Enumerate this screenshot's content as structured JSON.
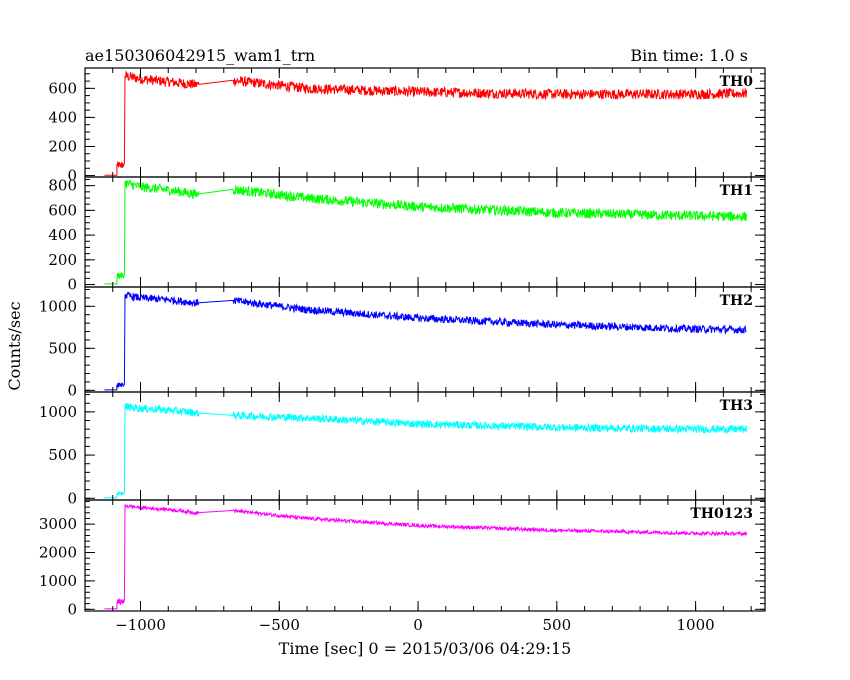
{
  "header": {
    "title": "ae150306042915_wam1_trn",
    "bin_time": "Bin time: 1.0 s"
  },
  "chart_data": {
    "type": "line",
    "xlabel": "Time [sec] 0 = 2015/03/06 04:29:15",
    "ylabel": "Counts/sec",
    "xlim": [
      -1200,
      1250
    ],
    "x_ticks": [
      -1000,
      -500,
      0,
      500,
      1000
    ],
    "x_tick_labels": [
      "−1000",
      "−500",
      "0",
      "500",
      "1000"
    ],
    "grid": false,
    "panels": [
      {
        "name": "TH0",
        "color": "#ff0000",
        "ylim": [
          -10,
          740
        ],
        "y_ticks": [
          0,
          200,
          400,
          600
        ],
        "baseline": 2,
        "pre": 80,
        "series": [
          [
            -1055,
            685
          ],
          [
            -1000,
            665
          ],
          [
            -900,
            645
          ],
          [
            -800,
            625
          ],
          [
            -670,
            655
          ],
          [
            -400,
            600
          ],
          [
            0,
            575
          ],
          [
            500,
            560
          ],
          [
            1000,
            560
          ],
          [
            1180,
            565
          ]
        ],
        "noise": 35
      },
      {
        "name": "TH1",
        "color": "#00ff00",
        "ylim": [
          -20,
          870
        ],
        "y_ticks": [
          0,
          200,
          400,
          600,
          800
        ],
        "baseline": 5,
        "pre": 80,
        "series": [
          [
            -1055,
            820
          ],
          [
            -1000,
            790
          ],
          [
            -900,
            765
          ],
          [
            -800,
            730
          ],
          [
            -670,
            770
          ],
          [
            -400,
            700
          ],
          [
            0,
            630
          ],
          [
            500,
            580
          ],
          [
            1000,
            555
          ],
          [
            1180,
            550
          ]
        ],
        "noise": 40
      },
      {
        "name": "TH2",
        "color": "#0000ff",
        "ylim": [
          -20,
          1230
        ],
        "y_ticks": [
          0,
          500,
          1000
        ],
        "baseline": 5,
        "pre": 70,
        "series": [
          [
            -1055,
            1130
          ],
          [
            -1000,
            1100
          ],
          [
            -900,
            1080
          ],
          [
            -800,
            1040
          ],
          [
            -670,
            1070
          ],
          [
            -400,
            960
          ],
          [
            0,
            860
          ],
          [
            500,
            780
          ],
          [
            1000,
            730
          ],
          [
            1180,
            720
          ]
        ],
        "noise": 45
      },
      {
        "name": "TH3",
        "color": "#00ffff",
        "ylim": [
          -20,
          1230
        ],
        "y_ticks": [
          0,
          500,
          1000
        ],
        "baseline": 5,
        "pre": 60,
        "series": [
          [
            -1055,
            1060
          ],
          [
            -1000,
            1040
          ],
          [
            -900,
            1020
          ],
          [
            -800,
            990
          ],
          [
            -670,
            960
          ],
          [
            -400,
            930
          ],
          [
            0,
            860
          ],
          [
            500,
            820
          ],
          [
            1000,
            800
          ],
          [
            1180,
            800
          ]
        ],
        "noise": 45
      },
      {
        "name": "TH0123",
        "color": "#ff00ff",
        "ylim": [
          -60,
          3850
        ],
        "y_ticks": [
          0,
          1000,
          2000,
          3000
        ],
        "baseline": 15,
        "pre": 300,
        "series": [
          [
            -1055,
            3650
          ],
          [
            -1000,
            3580
          ],
          [
            -900,
            3520
          ],
          [
            -800,
            3400
          ],
          [
            -670,
            3480
          ],
          [
            -400,
            3200
          ],
          [
            0,
            2950
          ],
          [
            500,
            2780
          ],
          [
            1000,
            2680
          ],
          [
            1180,
            2660
          ]
        ],
        "noise": 60
      }
    ]
  }
}
